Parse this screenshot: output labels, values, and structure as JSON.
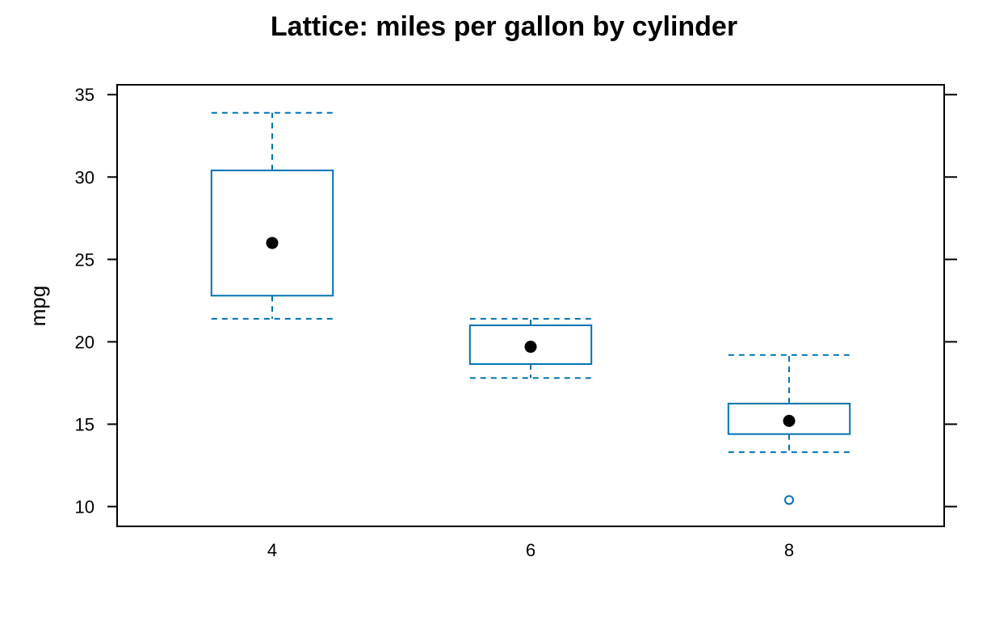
{
  "chart_data": {
    "type": "box",
    "title": "Lattice: miles per gallon by cylinder",
    "xlabel": "",
    "ylabel": "mpg",
    "categories": [
      "4",
      "6",
      "8"
    ],
    "boxes": [
      {
        "category": "4",
        "whisker_low": 21.4,
        "q1": 22.8,
        "median": 26.0,
        "q3": 30.4,
        "whisker_high": 33.9,
        "outliers": []
      },
      {
        "category": "6",
        "whisker_low": 17.8,
        "q1": 18.65,
        "median": 19.7,
        "q3": 21.0,
        "whisker_high": 21.4,
        "outliers": []
      },
      {
        "category": "8",
        "whisker_low": 13.3,
        "q1": 14.4,
        "median": 15.2,
        "q3": 16.25,
        "whisker_high": 19.2,
        "outliers": [
          10.4
        ]
      }
    ],
    "ylim": [
      8.8,
      35.6
    ],
    "yticks": [
      10,
      15,
      20,
      25,
      30,
      35
    ],
    "grid": false,
    "colors": {
      "box": "#0072b2",
      "median_dot": "#000000",
      "frame": "#000000"
    }
  }
}
